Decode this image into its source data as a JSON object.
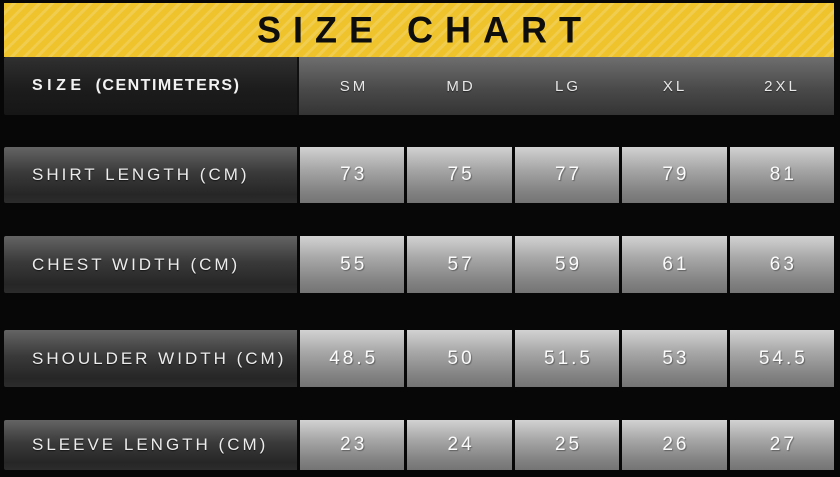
{
  "banner": {
    "title": "SIZE CHART",
    "background": "#eec32b",
    "stripe": "rgba(255,255,255,0.17)",
    "title_color": "#0d0d0d"
  },
  "table": {
    "header": {
      "label_primary": "SIZE",
      "label_secondary": "(CENTIMETERS)",
      "columns": [
        "SM",
        "MD",
        "LG",
        "XL",
        "2XL"
      ]
    },
    "rows": [
      {
        "label": "SHIRT LENGTH (CM)",
        "values": [
          "73",
          "75",
          "77",
          "79",
          "81"
        ]
      },
      {
        "label": "CHEST WIDTH (CM)",
        "values": [
          "55",
          "57",
          "59",
          "61",
          "63"
        ]
      },
      {
        "label": "SHOULDER WIDTH (CM)",
        "values": [
          "48.5",
          "50",
          "51.5",
          "53",
          "54.5"
        ]
      },
      {
        "label": "SLEEVE LENGTH (CM)",
        "values": [
          "23",
          "24",
          "25",
          "26",
          "27"
        ]
      }
    ]
  },
  "chart_data": {
    "type": "table",
    "title": "SIZE CHART",
    "unit": "centimeters",
    "columns": [
      "SM",
      "MD",
      "LG",
      "XL",
      "2XL"
    ],
    "rows": [
      {
        "label": "SHIRT LENGTH (CM)",
        "values": [
          73,
          75,
          77,
          79,
          81
        ]
      },
      {
        "label": "CHEST WIDTH (CM)",
        "values": [
          55,
          57,
          59,
          61,
          63
        ]
      },
      {
        "label": "SHOULDER WIDTH (CM)",
        "values": [
          48.5,
          50,
          51.5,
          53,
          54.5
        ]
      },
      {
        "label": "SLEEVE LENGTH (CM)",
        "values": [
          23,
          24,
          25,
          26,
          27
        ]
      }
    ]
  }
}
